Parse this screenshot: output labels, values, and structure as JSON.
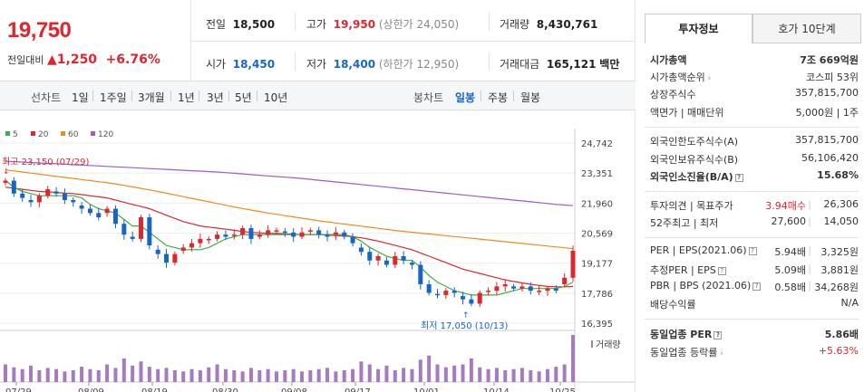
{
  "quote": {
    "price": "19,750",
    "change_label": "전일대비",
    "change_value": "1,250",
    "change_pct": "+6.76%",
    "prev_close_label": "전일",
    "prev_close": "18,500",
    "high_label": "고가",
    "high": "19,950",
    "upper_limit": "(상한가 24,050)",
    "volume_label": "거래량",
    "volume": "8,430,761",
    "open_label": "시가",
    "open": "18,450",
    "low_label": "저가",
    "low": "18,400",
    "lower_limit": "(하한가 12,950)",
    "amount_label": "거래대금",
    "amount": "165,121",
    "amount_unit": "백만"
  },
  "toolbar": {
    "line_chart": "선차트",
    "periods": [
      "1일",
      "1주일",
      "3개월",
      "1년",
      "3년",
      "5년",
      "10년"
    ],
    "candle_chart": "봉차트",
    "candle_periods": [
      "일봉",
      "주봉",
      "월봉"
    ],
    "active_candle": "일봉"
  },
  "colors": {
    "up": "#e0262d",
    "down": "#1766c6",
    "ma5": "#3cb043",
    "ma20": "#e0262d",
    "ma60": "#f08c1c",
    "ma120": "#9a5ec6"
  },
  "chart_data": {
    "type": "candlestick",
    "legend": [
      {
        "name": "5",
        "color": "#3cb043"
      },
      {
        "name": "20",
        "color": "#e0262d"
      },
      {
        "name": "60",
        "color": "#f08c1c"
      },
      {
        "name": "120",
        "color": "#9a5ec6"
      }
    ],
    "y_ticks": [
      "24,742",
      "23,351",
      "21,960",
      "20,569",
      "19,177",
      "17,786",
      "16,395"
    ],
    "y_tick_values": [
      24742,
      23351,
      21960,
      20569,
      19177,
      17786,
      16395
    ],
    "ylim": [
      16395,
      24742
    ],
    "x_ticks": [
      "07/29",
      "08/09",
      "08/19",
      "08/30",
      "09/08",
      "09/17",
      "10/01",
      "10/14",
      "10/25"
    ],
    "high_annotation": "최고 23,150 (07/29)",
    "low_annotation": "최저 17,050 (10/13)",
    "volume_label": "거래량",
    "closes": [
      23000,
      22400,
      22200,
      22000,
      22300,
      22600,
      22400,
      22100,
      22000,
      21700,
      21500,
      21300,
      21700,
      21000,
      20500,
      20300,
      21300,
      20000,
      19600,
      19200,
      19600,
      19900,
      20100,
      20300,
      20300,
      20500,
      20400,
      20500,
      20800,
      20300,
      20500,
      20700,
      20700,
      20600,
      20400,
      20600,
      20700,
      20500,
      20400,
      20600,
      20400,
      20100,
      19700,
      19300,
      19500,
      19100,
      19500,
      19300,
      19100,
      18200,
      17800,
      17700,
      17900,
      17800,
      17500,
      17300,
      17800,
      17900,
      18100,
      18200,
      18000,
      18100,
      17900,
      17900,
      18000,
      17900,
      18500,
      19750
    ],
    "volumes": [
      30,
      25,
      22,
      28,
      20,
      24,
      22,
      18,
      20,
      26,
      22,
      20,
      30,
      24,
      40,
      28,
      35,
      26,
      22,
      24,
      20,
      18,
      22,
      20,
      25,
      30,
      22,
      20,
      18,
      24,
      20,
      22,
      18,
      20,
      22,
      18,
      20,
      22,
      24,
      18,
      20,
      22,
      35,
      30,
      22,
      28,
      20,
      24,
      22,
      38,
      45,
      30,
      25,
      28,
      30,
      40,
      25,
      22,
      24,
      20,
      22,
      24,
      20,
      18,
      22,
      26,
      30,
      80
    ],
    "ma5": [
      23000,
      22700,
      22500,
      22400,
      22300,
      22300,
      22300,
      22300,
      22300,
      22200,
      21900,
      21700,
      21600,
      21500,
      21200,
      20900,
      20900,
      20600,
      20300,
      20000,
      19900,
      19800,
      19800,
      19800,
      19900,
      20100,
      20300,
      20400,
      20500,
      20500,
      20500,
      20500,
      20500,
      20500,
      20500,
      20500,
      20500,
      20500,
      20500,
      20500,
      20500,
      20400,
      20200,
      19900,
      19700,
      19500,
      19400,
      19300,
      19300,
      19000,
      18600,
      18300,
      18100,
      17900,
      17800,
      17700,
      17700,
      17700,
      17700,
      17800,
      17900,
      18000,
      18000,
      18000,
      18000,
      18000,
      18100,
      18300
    ],
    "ma20": [
      22700,
      22650,
      22600,
      22550,
      22500,
      22480,
      22450,
      22420,
      22400,
      22350,
      22300,
      22250,
      22200,
      22100,
      22000,
      21900,
      21800,
      21700,
      21550,
      21400,
      21250,
      21100,
      21000,
      20900,
      20850,
      20800,
      20750,
      20700,
      20650,
      20600,
      20580,
      20560,
      20550,
      20540,
      20520,
      20500,
      20500,
      20500,
      20480,
      20460,
      20440,
      20400,
      20350,
      20280,
      20200,
      20100,
      20000,
      19900,
      19800,
      19650,
      19500,
      19350,
      19200,
      19050,
      18900,
      18800,
      18700,
      18600,
      18500,
      18400,
      18330,
      18260,
      18200,
      18150,
      18100,
      18080,
      18080,
      18100
    ],
    "ma60": [
      23500,
      23450,
      23400,
      23350,
      23300,
      23250,
      23200,
      23150,
      23100,
      23050,
      23000,
      22950,
      22900,
      22850,
      22780,
      22710,
      22640,
      22570,
      22500,
      22420,
      22340,
      22260,
      22180,
      22100,
      22020,
      21940,
      21860,
      21780,
      21710,
      21640,
      21570,
      21500,
      21440,
      21380,
      21320,
      21260,
      21200,
      21140,
      21090,
      21040,
      20990,
      20940,
      20890,
      20840,
      20790,
      20740,
      20690,
      20650,
      20610,
      20570,
      20530,
      20490,
      20450,
      20410,
      20370,
      20330,
      20290,
      20250,
      20210,
      20170,
      20130,
      20090,
      20050,
      20010,
      19970,
      19930,
      19890,
      19850
    ],
    "ma120": [
      23900,
      23880,
      23860,
      23840,
      23820,
      23800,
      23780,
      23760,
      23740,
      23720,
      23700,
      23680,
      23660,
      23640,
      23620,
      23600,
      23580,
      23560,
      23540,
      23520,
      23500,
      23480,
      23460,
      23440,
      23420,
      23400,
      23370,
      23340,
      23310,
      23280,
      23250,
      23220,
      23190,
      23160,
      23130,
      23100,
      23060,
      23020,
      22980,
      22940,
      22900,
      22860,
      22820,
      22780,
      22740,
      22700,
      22660,
      22620,
      22580,
      22540,
      22500,
      22460,
      22420,
      22380,
      22340,
      22300,
      22260,
      22220,
      22180,
      22140,
      22100,
      22060,
      22020,
      21980,
      21940,
      21900,
      21870,
      21840
    ]
  },
  "invest": {
    "tab_active": "투자정보",
    "tab_other": "호가 10단계",
    "rows": [
      {
        "k": "시가총액",
        "v": "7조 669억원",
        "bold": true
      },
      {
        "k": "시가총액순위",
        "v": "코스피 53위"
      },
      {
        "k": "상장주식수",
        "v": "357,815,700"
      },
      {
        "k": "액면가 | 매매단위",
        "v": "5,000원 | 1주"
      },
      {
        "k": "외국인한도주식수(A)",
        "v": "357,815,700"
      },
      {
        "k": "외국인보유주식수(B)",
        "v": "56,106,420"
      },
      {
        "k": "외국인소진율(B/A)",
        "v": "15.68%",
        "bold": true
      },
      {
        "k": "투자의견 | 목표주가",
        "v1": "3.94매수",
        "v": "26,306"
      },
      {
        "k": "52주최고 | 최저",
        "v1": "27,600",
        "v": "14,050"
      },
      {
        "k": "PER | EPS(2021.06)",
        "v1": "5.94배",
        "v": "3,325원"
      },
      {
        "k": "추정PER | EPS",
        "v1": "5.09배",
        "v": "3,881원"
      },
      {
        "k": "PBR | BPS (2021.06)",
        "v1": "0.58배",
        "v": "34,268원"
      },
      {
        "k": "배당수익률",
        "v": "N/A"
      },
      {
        "k": "동일업종 PER",
        "v": "5.86배",
        "bold": true
      },
      {
        "k": "동일업종 등락률",
        "v": "+5.63%",
        "red": true
      }
    ]
  }
}
